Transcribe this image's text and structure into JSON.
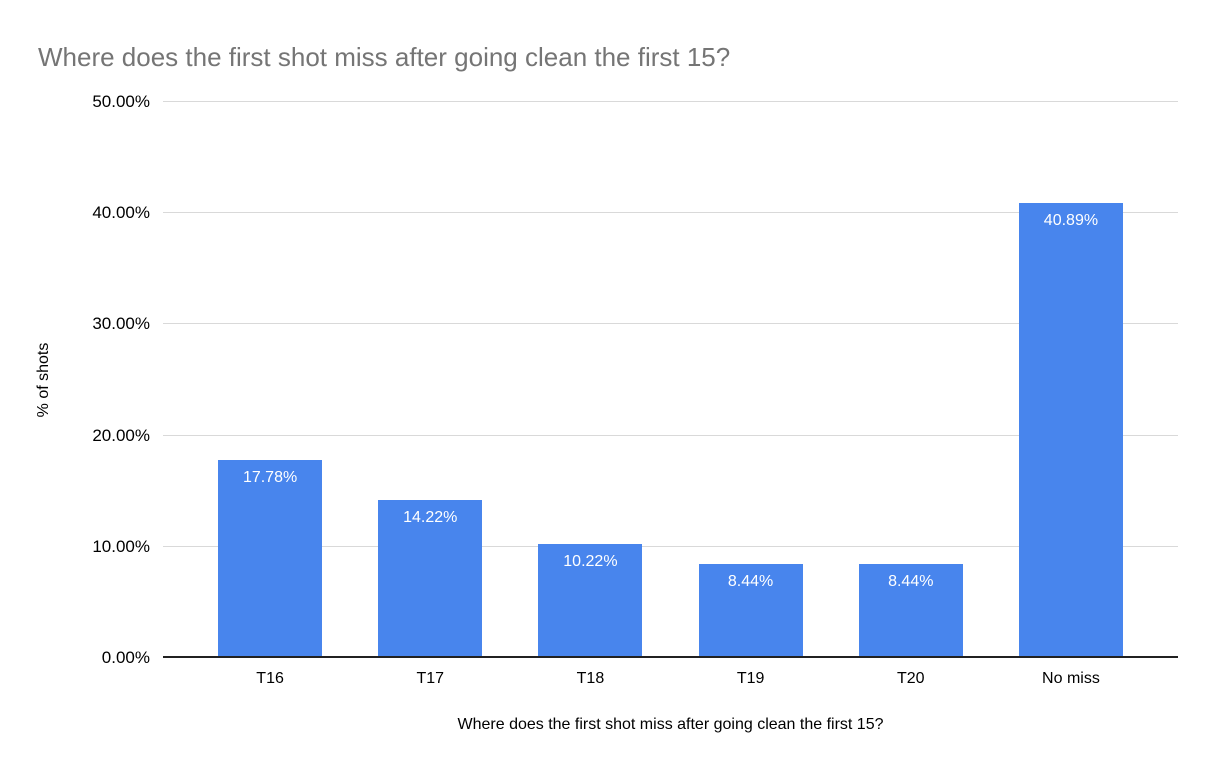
{
  "chart_data": {
    "type": "bar",
    "title": "Where does the first shot miss after going clean the first 15?",
    "categories": [
      "T16",
      "T17",
      "T18",
      "T19",
      "T20",
      "No miss"
    ],
    "values": [
      17.78,
      14.22,
      10.22,
      8.44,
      8.44,
      40.89
    ],
    "value_labels": [
      "17.78%",
      "14.22%",
      "10.22%",
      "8.44%",
      "8.44%",
      "40.89%"
    ],
    "xlabel": "Where does the first shot miss after going clean the first 15?",
    "ylabel": "% of shots",
    "ylim": [
      0,
      50
    ],
    "yticks": [
      0,
      10,
      20,
      30,
      40,
      50
    ],
    "ytick_labels": [
      "0.00%",
      "10.00%",
      "20.00%",
      "30.00%",
      "40.00%",
      "50.00%"
    ],
    "grid": true,
    "legend_position": "none",
    "colors": {
      "bar": "#4885ed",
      "bar_value_label": "#ffffff",
      "title": "#757575",
      "axis_text": "#000000",
      "gridline": "#d9d9d9",
      "baseline": "#212121",
      "background": "#ffffff"
    }
  }
}
